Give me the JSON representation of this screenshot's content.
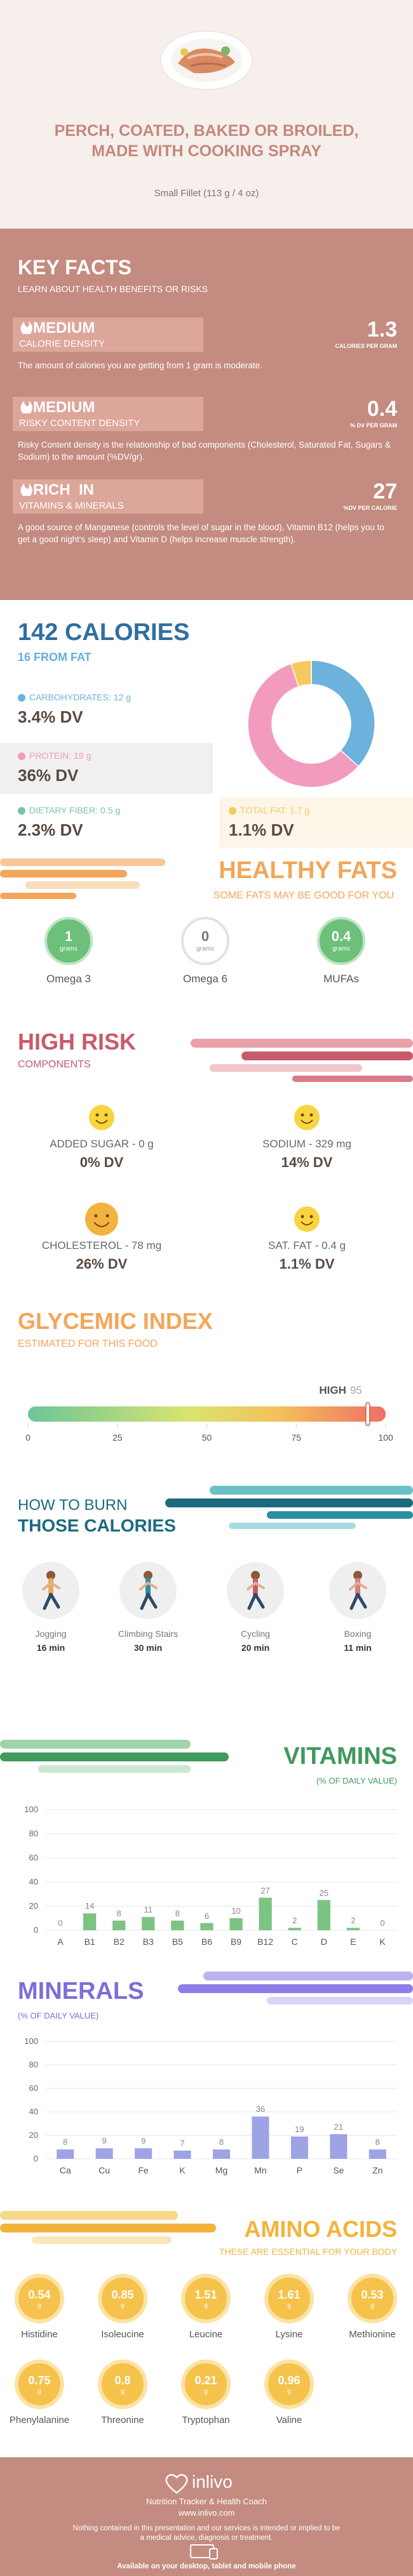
{
  "header": {
    "title": "PERCH, COATED, BAKED OR BROILED, MADE WITH COOKING SPRAY",
    "serving": "Small Fillet (113 g / 4 oz)"
  },
  "key_facts": {
    "title": "KEY FACTS",
    "subtitle": "LEARN ABOUT HEALTH BENEFITS OR RISKS",
    "facts": [
      {
        "level": "MEDIUM",
        "name": "CALORIE DENSITY",
        "value": 1.3,
        "unit": "CALORIES PER GRAM",
        "description": "The amount of calories you are getting from 1 gram is moderate."
      },
      {
        "level": "MEDIUM",
        "name": "RISKY CONTENT DENSITY",
        "value": 0.4,
        "unit": "% DV PER GRAM",
        "description": "Risky Content density is the relationship of bad components (Cholesterol, Saturated Fat, Sugars & Sodium) to the amount (%DV/gr)."
      },
      {
        "level": "RICH  IN",
        "name": "VITAMINS & MINERALS",
        "value": 27,
        "unit": "%DV PER CALORIE",
        "description": "A good source of Manganese (controls the level of sugar in the blood), Vitamin B12 (helps you to get a good night's sleep) and Vitamin D (helps increase muscle strength)."
      }
    ]
  },
  "calories": {
    "title": "142 CALORIES",
    "subtitle": "16 FROM FAT",
    "nutrients": [
      {
        "label": "CARBOHYDRATES: 12 g",
        "grams": 12,
        "dv": "3.4% DV",
        "color": "#6cb2dc",
        "in_chart": true
      },
      {
        "label": "PROTEIN: 19 g",
        "grams": 19,
        "dv": "36% DV",
        "color": "#f29bbf",
        "in_chart": true
      },
      {
        "label": "DIETARY FIBER: 0.5 g",
        "grams": 0.5,
        "dv": "2.3% DV",
        "color": "#7cc4a0",
        "in_chart": false
      },
      {
        "label": "TOTAL FAT: 1.7 g",
        "grams": 1.7,
        "dv": "1.1% DV",
        "color": "#f4c95d",
        "in_chart": true
      }
    ]
  },
  "healthy_fats": {
    "title": "HEALTHY FATS",
    "subtitle": "SOME FATS MAY BE GOOD FOR YOU",
    "items": [
      {
        "value": 1,
        "unit": "grams",
        "name": "Omega 3"
      },
      {
        "value": 0,
        "unit": "grams",
        "name": "Omega 6"
      },
      {
        "value": 0.4,
        "unit": "grams",
        "name": "MUFAs"
      }
    ]
  },
  "high_risk": {
    "title": "HIGH RISK",
    "subtitle": "COMPONENTS",
    "items": [
      {
        "label": "ADDED SUGAR - 0 g",
        "dv": "0% DV"
      },
      {
        "label": "SODIUM - 329 mg",
        "dv": "14% DV"
      },
      {
        "label": "CHOLESTEROL - 78 mg",
        "dv": "26% DV"
      },
      {
        "label": "SAT. FAT - 0.4 g",
        "dv": "1.1% DV"
      }
    ]
  },
  "glycemic_index": {
    "title": "GLYCEMIC INDEX",
    "subtitle": "ESTIMATED FOR THIS FOOD",
    "level": "HIGH",
    "value": 95,
    "xlim": [
      0,
      100
    ],
    "xticks": [
      0,
      25,
      50,
      75,
      100
    ]
  },
  "burn": {
    "title_line_1": "HOW TO BURN",
    "title_line_2": "THOSE CALORIES",
    "activities": [
      {
        "name": "Jogging",
        "time": "16 min"
      },
      {
        "name": "Climbing Stairs",
        "time": "30 min"
      },
      {
        "name": "Cycling",
        "time": "20 min"
      },
      {
        "name": "Boxing",
        "time": "11 min"
      }
    ]
  },
  "chart_data": [
    {
      "type": "bar",
      "title": "VITAMINS",
      "subtitle": "(% OF DAILY VALUE)",
      "categories": [
        "A",
        "B1",
        "B2",
        "B3",
        "B5",
        "B6",
        "B9",
        "B12",
        "C",
        "D",
        "E",
        "K"
      ],
      "values": [
        0,
        14,
        8,
        11,
        8,
        6,
        10,
        27,
        2,
        25,
        2,
        0
      ],
      "color": "#7dc383",
      "ylim": [
        0,
        100
      ],
      "yticks": [
        0,
        20,
        40,
        60,
        80,
        100
      ],
      "grid": true
    },
    {
      "type": "bar",
      "title": "MINERALS",
      "subtitle": "(% OF DAILY VALUE)",
      "categories": [
        "Ca",
        "Cu",
        "Fe",
        "K",
        "Mg",
        "Mn",
        "P",
        "Se",
        "Zn"
      ],
      "values": [
        8,
        9,
        9,
        7,
        8,
        36,
        19,
        21,
        8
      ],
      "color": "#9ea3e6",
      "ylim": [
        0,
        100
      ],
      "yticks": [
        0,
        20,
        40,
        60,
        80,
        100
      ],
      "grid": true
    }
  ],
  "amino_acids": {
    "title": "AMINO ACIDS",
    "subtitle": "THESE ARE ESSENTIAL FOR YOUR BODY",
    "unit": "g",
    "items": [
      {
        "name": "Histidine",
        "value": 0.54
      },
      {
        "name": "Isoleucine",
        "value": 0.85
      },
      {
        "name": "Leucine",
        "value": 1.51
      },
      {
        "name": "Lysine",
        "value": 1.61
      },
      {
        "name": "Methionine",
        "value": 0.53
      },
      {
        "name": "Phenylalanine",
        "value": 0.75
      },
      {
        "name": "Threonine",
        "value": 0.8
      },
      {
        "name": "Tryptophan",
        "value": 0.21
      },
      {
        "name": "Valine",
        "value": 0.96
      }
    ]
  },
  "footer": {
    "brand": "inlivo",
    "tagline": "Nutrition Tracker & Health Coach",
    "url": "www.inlivo.com",
    "disclaimer": "Nothing contained in this presentation and our services is intended or implied to be a medical advice, diagnosis or treatment.",
    "availability": "Available on your desktop, tablet and mobile phone"
  }
}
